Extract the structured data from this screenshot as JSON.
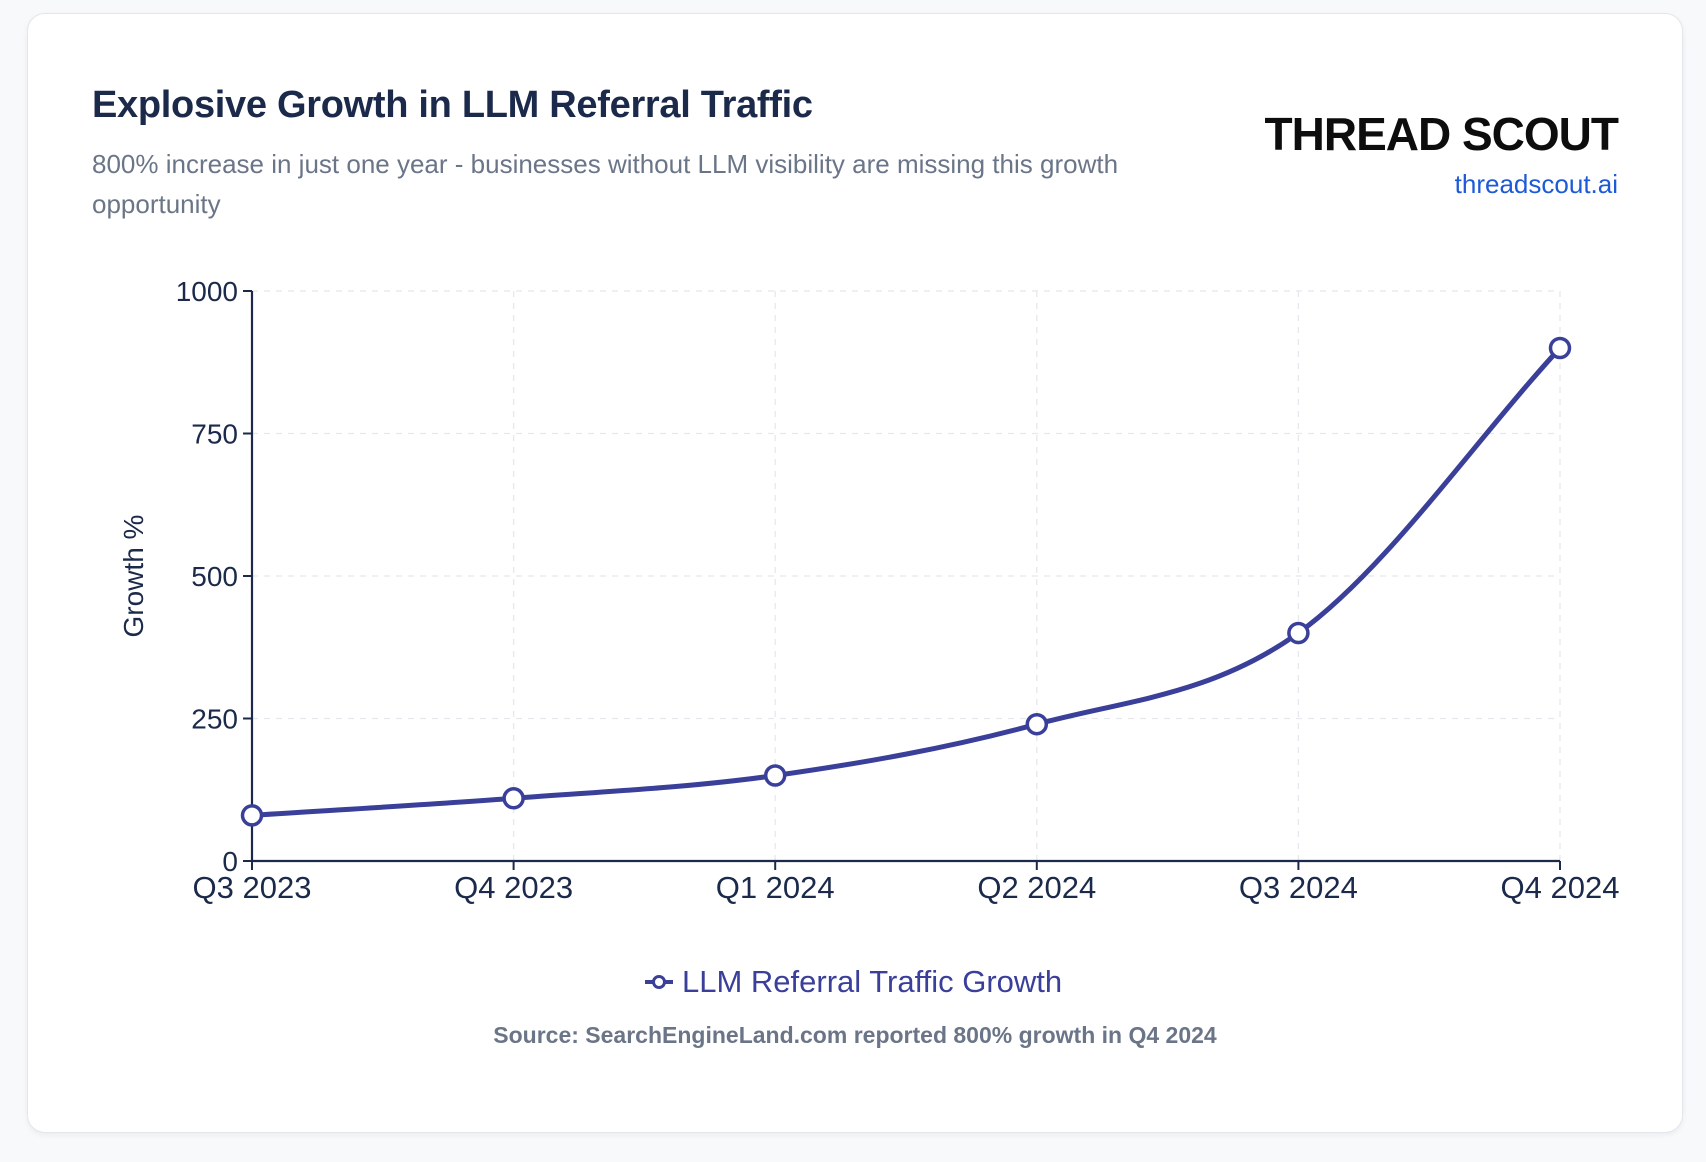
{
  "header": {
    "title": "Explosive Growth in LLM Referral Traffic",
    "subtitle": "800% increase in just one year - businesses without LLM visibility are missing this growth opportunity"
  },
  "brand": {
    "name": "THREAD SCOUT",
    "url": "threadscout.ai"
  },
  "footer": {
    "source": "Source: SearchEngineLand.com reported 800% growth in Q4 2024"
  },
  "colors": {
    "line": "#3a3f9a",
    "axis": "#1b2a4a",
    "grid": "#e6e8ee",
    "point_fill": "#ffffff"
  },
  "chart_data": {
    "type": "line",
    "title": "",
    "xlabel": "",
    "ylabel": "Growth %",
    "categories": [
      "Q3 2023",
      "Q4 2023",
      "Q1 2024",
      "Q2 2024",
      "Q3 2024",
      "Q4 2024"
    ],
    "series": [
      {
        "name": "LLM Referral Traffic Growth",
        "values": [
          80,
          110,
          150,
          240,
          400,
          900
        ]
      }
    ],
    "ylim": [
      0,
      1000
    ],
    "yticks": [
      0,
      250,
      500,
      750,
      1000
    ],
    "grid": true,
    "legend": "bottom-center"
  }
}
